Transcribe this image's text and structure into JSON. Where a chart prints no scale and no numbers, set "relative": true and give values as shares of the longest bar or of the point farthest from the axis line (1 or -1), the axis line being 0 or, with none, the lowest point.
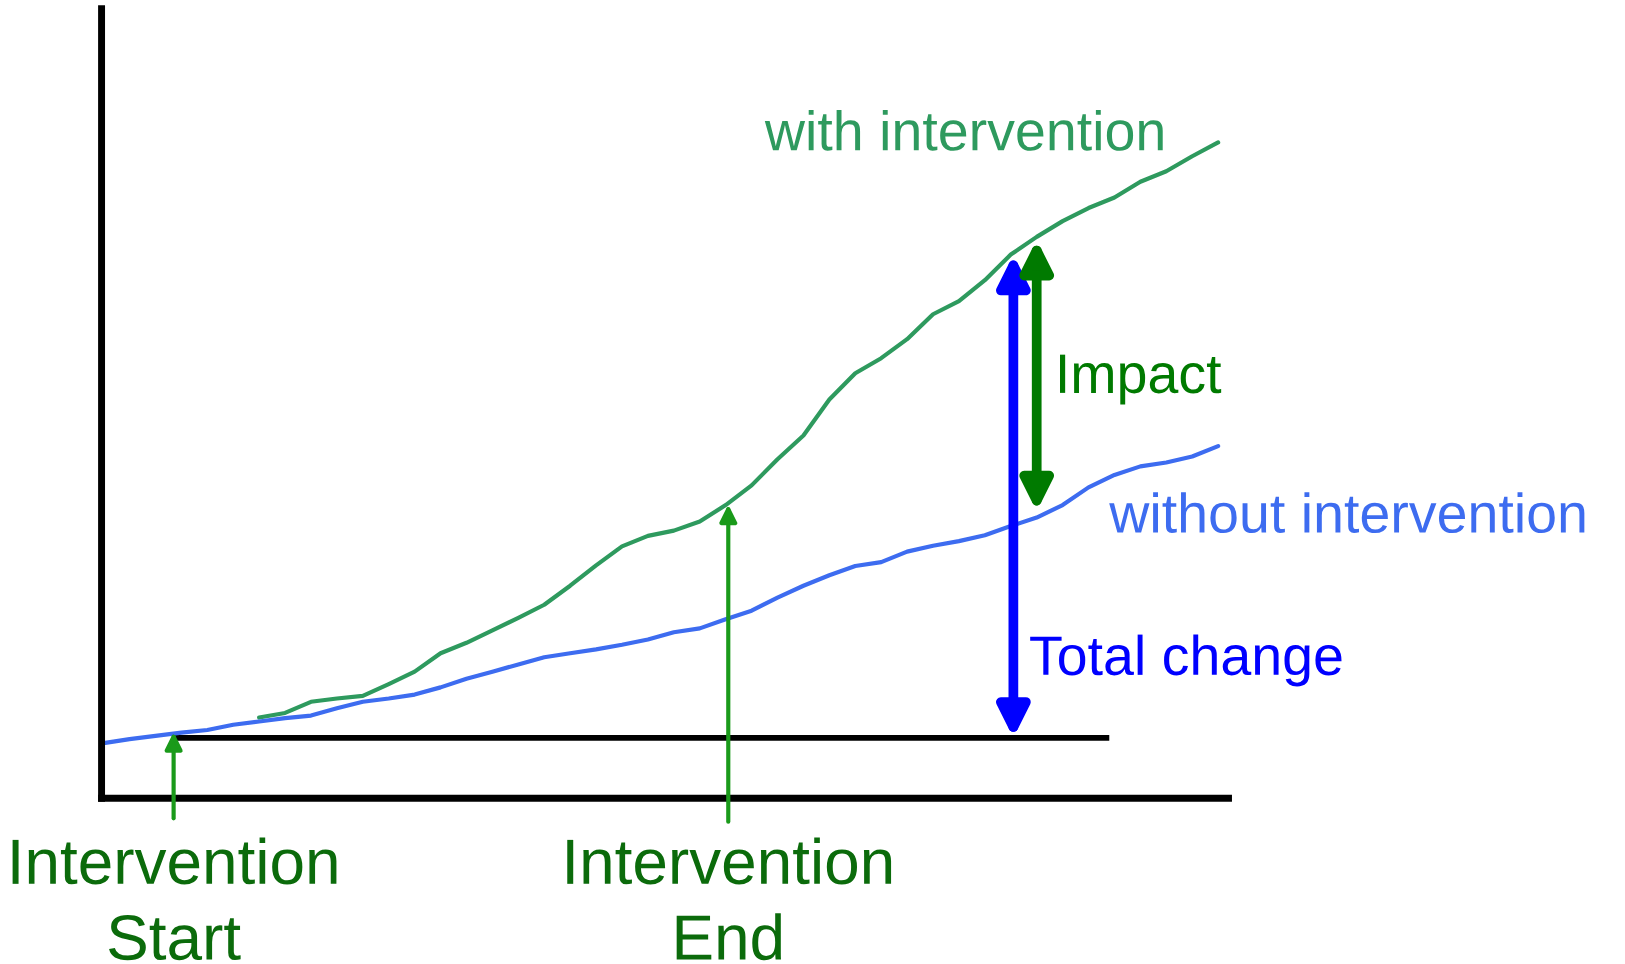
{
  "chart_data": {
    "type": "line",
    "relative": true,
    "categories": [
      null,
      null,
      null,
      null,
      null,
      null,
      null,
      null,
      null,
      null,
      null,
      null,
      null,
      null,
      null,
      null,
      null,
      null,
      null,
      null,
      null,
      null,
      null,
      null,
      null,
      null,
      null,
      null,
      null,
      null,
      null,
      null,
      null,
      null,
      null,
      null,
      null,
      null,
      null,
      null,
      null,
      null,
      null,
      null
    ],
    "series": [
      {
        "name": "with intervention",
        "color": "#2e9a5e",
        "values": [
          null,
          null,
          null,
          null,
          null,
          null,
          0.123,
          0.13,
          0.147,
          0.152,
          0.156,
          0.174,
          0.193,
          0.221,
          0.237,
          0.256,
          0.275,
          0.295,
          0.324,
          0.355,
          0.384,
          0.4,
          0.408,
          0.422,
          0.447,
          0.477,
          0.517,
          0.553,
          0.608,
          0.648,
          0.671,
          0.7,
          0.738,
          0.758,
          0.79,
          0.829,
          0.856,
          0.88,
          0.9,
          0.916,
          0.94,
          0.956,
          0.979,
          1.0
        ]
      },
      {
        "name": "without intervention",
        "color": "#3d6cf0",
        "values": [
          0.084,
          0.09,
          0.095,
          0.1,
          0.104,
          0.112,
          0.117,
          0.122,
          0.126,
          0.137,
          0.147,
          0.152,
          0.158,
          0.169,
          0.182,
          0.193,
          0.204,
          0.215,
          0.221,
          0.227,
          0.234,
          0.242,
          0.253,
          0.259,
          0.273,
          0.286,
          0.306,
          0.324,
          0.34,
          0.354,
          0.36,
          0.376,
          0.385,
          0.392,
          0.401,
          0.415,
          0.428,
          0.447,
          0.474,
          0.493,
          0.506,
          0.512,
          0.521,
          0.537
        ]
      }
    ],
    "ref_lines": [
      {
        "axis": "y",
        "value": 0.092,
        "color": "#000000"
      }
    ],
    "annotations": [
      "Intervention\nStart",
      "Intervention\nEnd",
      "Total change",
      "Impact"
    ],
    "legend": false
  }
}
